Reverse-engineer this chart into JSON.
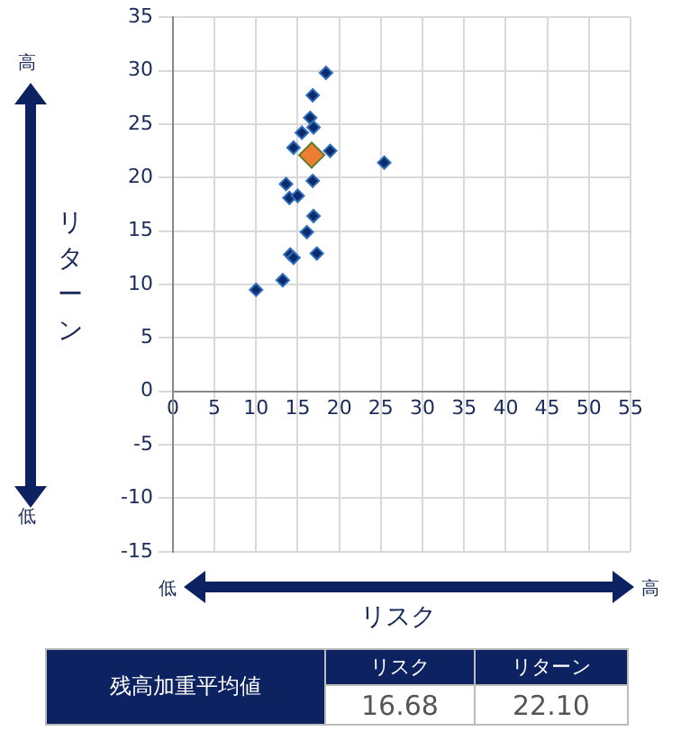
{
  "chart_data": {
    "type": "scatter",
    "xlabel": "リスク",
    "ylabel": "リターン",
    "xlim": [
      0,
      55
    ],
    "xticks": [
      0,
      5,
      10,
      15,
      20,
      25,
      30,
      35,
      40,
      45,
      50,
      55
    ],
    "ylim": [
      -15,
      35
    ],
    "yticks": [
      -15,
      -10,
      -5,
      0,
      5,
      10,
      15,
      20,
      25,
      30,
      35
    ],
    "grid": true,
    "legend": false,
    "marker": "diamond",
    "series": [
      {
        "color": "#0d2a6b",
        "x": [
          18.4,
          16.8,
          16.5,
          16.9,
          15.5,
          14.5,
          18.9,
          25.4,
          16.8,
          13.6,
          14.0,
          15.0,
          16.9,
          16.1,
          14.1,
          14.5,
          17.3,
          13.2,
          10.0
        ],
        "values": [
          29.8,
          27.7,
          25.6,
          24.7,
          24.2,
          22.8,
          22.5,
          21.4,
          19.7,
          19.4,
          18.1,
          18.3,
          16.4,
          14.9,
          12.8,
          12.5,
          12.9,
          10.4,
          9.5
        ]
      },
      {
        "color": "#ed7d31",
        "x": [
          16.68
        ],
        "values": [
          22.1
        ]
      }
    ],
    "annotations": [
      "高",
      "低",
      "低",
      "高",
      "残高加重平均値",
      "リスク",
      "リターン",
      "16.68",
      "22.10"
    ]
  }
}
